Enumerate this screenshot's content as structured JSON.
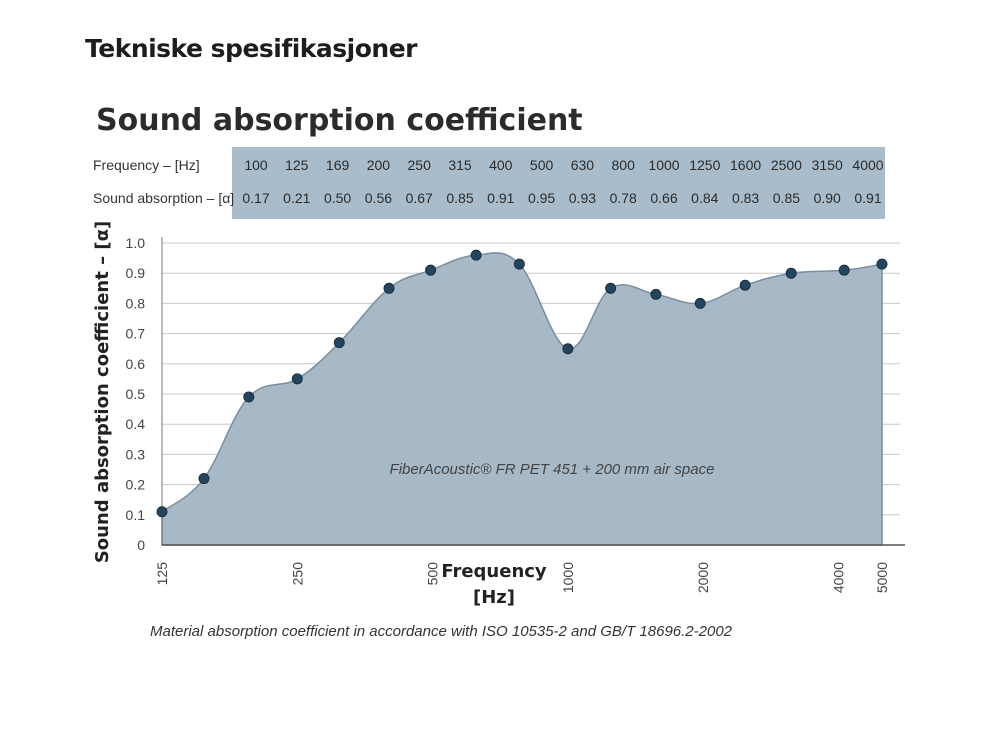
{
  "page": {
    "heading": "Tekniske spesifikasjoner"
  },
  "colors": {
    "area": "#a7b8c6",
    "line": "#7a8e9f",
    "point": "#23465e",
    "table_bg": "#a9bccb",
    "grid": "#c8c8c8"
  },
  "chart_data": {
    "type": "area",
    "title": "Sound absorption coefficient",
    "table": {
      "row_labels": [
        "Frequency – [Hz]",
        "Sound absorption – [α]"
      ],
      "frequencies": [
        "100",
        "125",
        "169",
        "200",
        "250",
        "315",
        "400",
        "500",
        "630",
        "800",
        "1000",
        "1250",
        "1600",
        "2500",
        "3150",
        "4000"
      ],
      "absorption": [
        "0.17",
        "0.21",
        "0.50",
        "0.56",
        "0.67",
        "0.85",
        "0.91",
        "0.95",
        "0.93",
        "0.78",
        "0.66",
        "0.84",
        "0.83",
        "0.85",
        "0.90",
        "0.91"
      ]
    },
    "ylabel": "Sound absorption coefficient – [α]",
    "xlabel": [
      "Frequency",
      "[Hz]"
    ],
    "ylim": [
      0,
      1.0
    ],
    "yticks": [
      "0",
      "0.1",
      "0.2",
      "0.3",
      "0.4",
      "0.5",
      "0.6",
      "0.7",
      "0.8",
      "0.9",
      "1.0"
    ],
    "x_scale": "log",
    "xlim": [
      125,
      5000
    ],
    "xticks": [
      "125",
      "250",
      "500",
      "1000",
      "2000",
      "4000",
      "5000"
    ],
    "grid": true,
    "series": [
      {
        "x": [
          125,
          155,
          195,
          250,
          310,
          400,
          495,
          625,
          780,
          1000,
          1245,
          1570,
          1970,
          2480,
          3140,
          4120,
          5000
        ],
        "y": [
          0.11,
          0.22,
          0.49,
          0.55,
          0.67,
          0.85,
          0.91,
          0.96,
          0.93,
          0.65,
          0.85,
          0.83,
          0.8,
          0.86,
          0.9,
          0.91,
          0.93
        ]
      }
    ],
    "annotation": "FiberAcoustic® FR PET 451 + 200 mm air space",
    "caption": "Material absorption coefficient in accordance with ISO 10535-2 and GB/T 18696.2-2002"
  }
}
